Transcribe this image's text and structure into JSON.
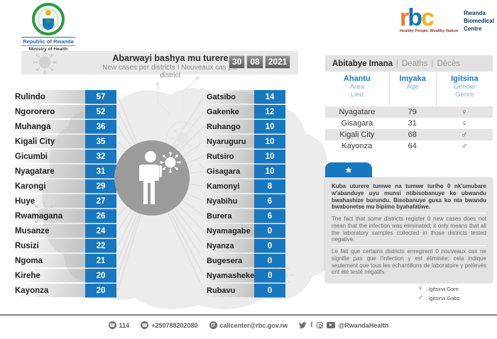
{
  "branding": {
    "government": {
      "line1": "Republic of Rwanda",
      "line2": "Ministry of Health"
    },
    "rbc": {
      "letter_r": "r",
      "letter_b": "b",
      "letter_c": "c",
      "tagline": "Healthy People, Wealthy Nation",
      "name_line1": "Rwanda",
      "name_line2": "Biomedical",
      "name_line3": "Centre"
    }
  },
  "header": {
    "title_rw": "Abarwayi bashya mu turere",
    "subtitle": "New cases per districts  I  Nouveaux cas par district",
    "date": {
      "day": "30",
      "month": "08",
      "year": "2021"
    }
  },
  "districts": {
    "left": [
      {
        "name": "Rulindo",
        "value": "57"
      },
      {
        "name": "Ngororero",
        "value": "52"
      },
      {
        "name": "Muhanga",
        "value": "36"
      },
      {
        "name": "Kigali City",
        "value": "35"
      },
      {
        "name": "Gicumbi",
        "value": "32"
      },
      {
        "name": "Nyagatare",
        "value": "31"
      },
      {
        "name": "Karongi",
        "value": "29"
      },
      {
        "name": "Huye",
        "value": "27"
      },
      {
        "name": "Rwamagana",
        "value": "26"
      },
      {
        "name": "Musanze",
        "value": "24"
      },
      {
        "name": "Rusizi",
        "value": "22"
      },
      {
        "name": "Ngoma",
        "value": "21"
      },
      {
        "name": "Kirehe",
        "value": "20"
      },
      {
        "name": "Kayonza",
        "value": "20"
      }
    ],
    "right": [
      {
        "name": "Gatsibo",
        "value": "14"
      },
      {
        "name": "Gakenke",
        "value": "12"
      },
      {
        "name": "Ruhango",
        "value": "10"
      },
      {
        "name": "Nyaruguru",
        "value": "10"
      },
      {
        "name": "Rutsiro",
        "value": "10"
      },
      {
        "name": "Gisagara",
        "value": "10"
      },
      {
        "name": "Kamonyi",
        "value": "8"
      },
      {
        "name": "Nyabihu",
        "value": "6"
      },
      {
        "name": "Burera",
        "value": "6"
      },
      {
        "name": "Nyamagabe",
        "value": "0"
      },
      {
        "name": "Nyanza",
        "value": "0"
      },
      {
        "name": "Bugesera",
        "value": "0"
      },
      {
        "name": "Nyamasheke",
        "value": "0"
      },
      {
        "name": "Rubavu",
        "value": "0"
      }
    ]
  },
  "deaths": {
    "title_rw": "Abitabye Imana",
    "title_en": "Deaths",
    "title_fr": "Décès",
    "sep": "|",
    "columns": [
      {
        "rw": "Ahantu",
        "en": "Area",
        "fr": "Lieu"
      },
      {
        "rw": "Imyaka",
        "en": "Age",
        "fr": ""
      },
      {
        "rw": "Igitsina",
        "en": "Gender",
        "fr": "Genre"
      }
    ],
    "rows": [
      {
        "area": "Nyagatare",
        "age": "79",
        "gender_symbol": "♀"
      },
      {
        "area": "Gisagara",
        "age": "31",
        "gender_symbol": "♀"
      },
      {
        "area": "Kigali City",
        "age": "68",
        "gender_symbol": "♂"
      },
      {
        "area": "Kayonza",
        "age": "64",
        "gender_symbol": "♂"
      }
    ]
  },
  "note": {
    "symbol": "*",
    "rw": "Kuba uturere tumwe na tumwe turiho 0 nk'umubare w'abanduye uyu munsi ntibisobanuye ko ubwandu bwahashize burundu. Bisobanuye gusa ko nta bwandu bwabonetse mu bipimo byahafatiwe.",
    "en": "The fact that some districts register 0 new cases does not mean that the infection was eliminated; it only means that all the laboratory samples collected in those districts tested negative.",
    "fr": "Le fait que certains districts enregirent 0 nouveaux cas ne signifie pas que l'infection y est éliminée; cela indique seulement que tous les échantillons de laboratoire y prélevés ont été testé négatifs"
  },
  "legend": {
    "female_symbol": "♀",
    "female_label": ": Igitsina Gore",
    "male_symbol": "♂",
    "male_label": ": Igitsina Gabo"
  },
  "footer": {
    "phone_short": "114",
    "phone": "+250788202080",
    "email": "callcenter@rbc.gov.rw",
    "social_handle": "@RwandaHealth"
  },
  "colors": {
    "accent_blue": "#1878bf",
    "rbc_orange": "#ee7c26",
    "rbc_blue": "#0e76bc",
    "rbc_yellow": "#f2b217",
    "strip_gray": "#e9e9e9",
    "row_stripe": "#e4e4e4",
    "date_gray": "#6e6e6e"
  }
}
